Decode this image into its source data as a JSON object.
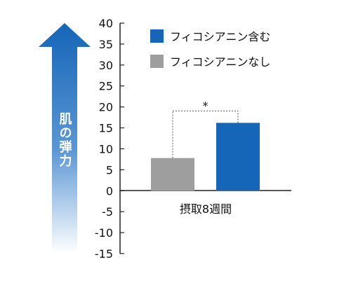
{
  "colors": {
    "background": "#ffffff",
    "axis": "#222222",
    "text": "#111111",
    "arrow_top": "#1565b8",
    "arrow_bottom": "#ffffff",
    "bracket": "#555555"
  },
  "chart_data": {
    "type": "bar",
    "ylabel": "肌の弾力",
    "xlabel": "",
    "ylim": [
      -15,
      40
    ],
    "yticks": [
      40,
      35,
      30,
      25,
      20,
      15,
      10,
      5,
      0,
      -5,
      -10,
      -15
    ],
    "categories": [
      "摂取8週間"
    ],
    "series": [
      {
        "name": "フィコシアニン含む",
        "color": "#1565b8",
        "values": [
          16.2
        ]
      },
      {
        "name": "フィコシアニンなし",
        "color": "#9e9e9e",
        "values": [
          7.8
        ]
      }
    ],
    "bar_order": [
      1,
      0
    ],
    "annotation": "*",
    "legend_position": "top-right",
    "grid": false
  }
}
